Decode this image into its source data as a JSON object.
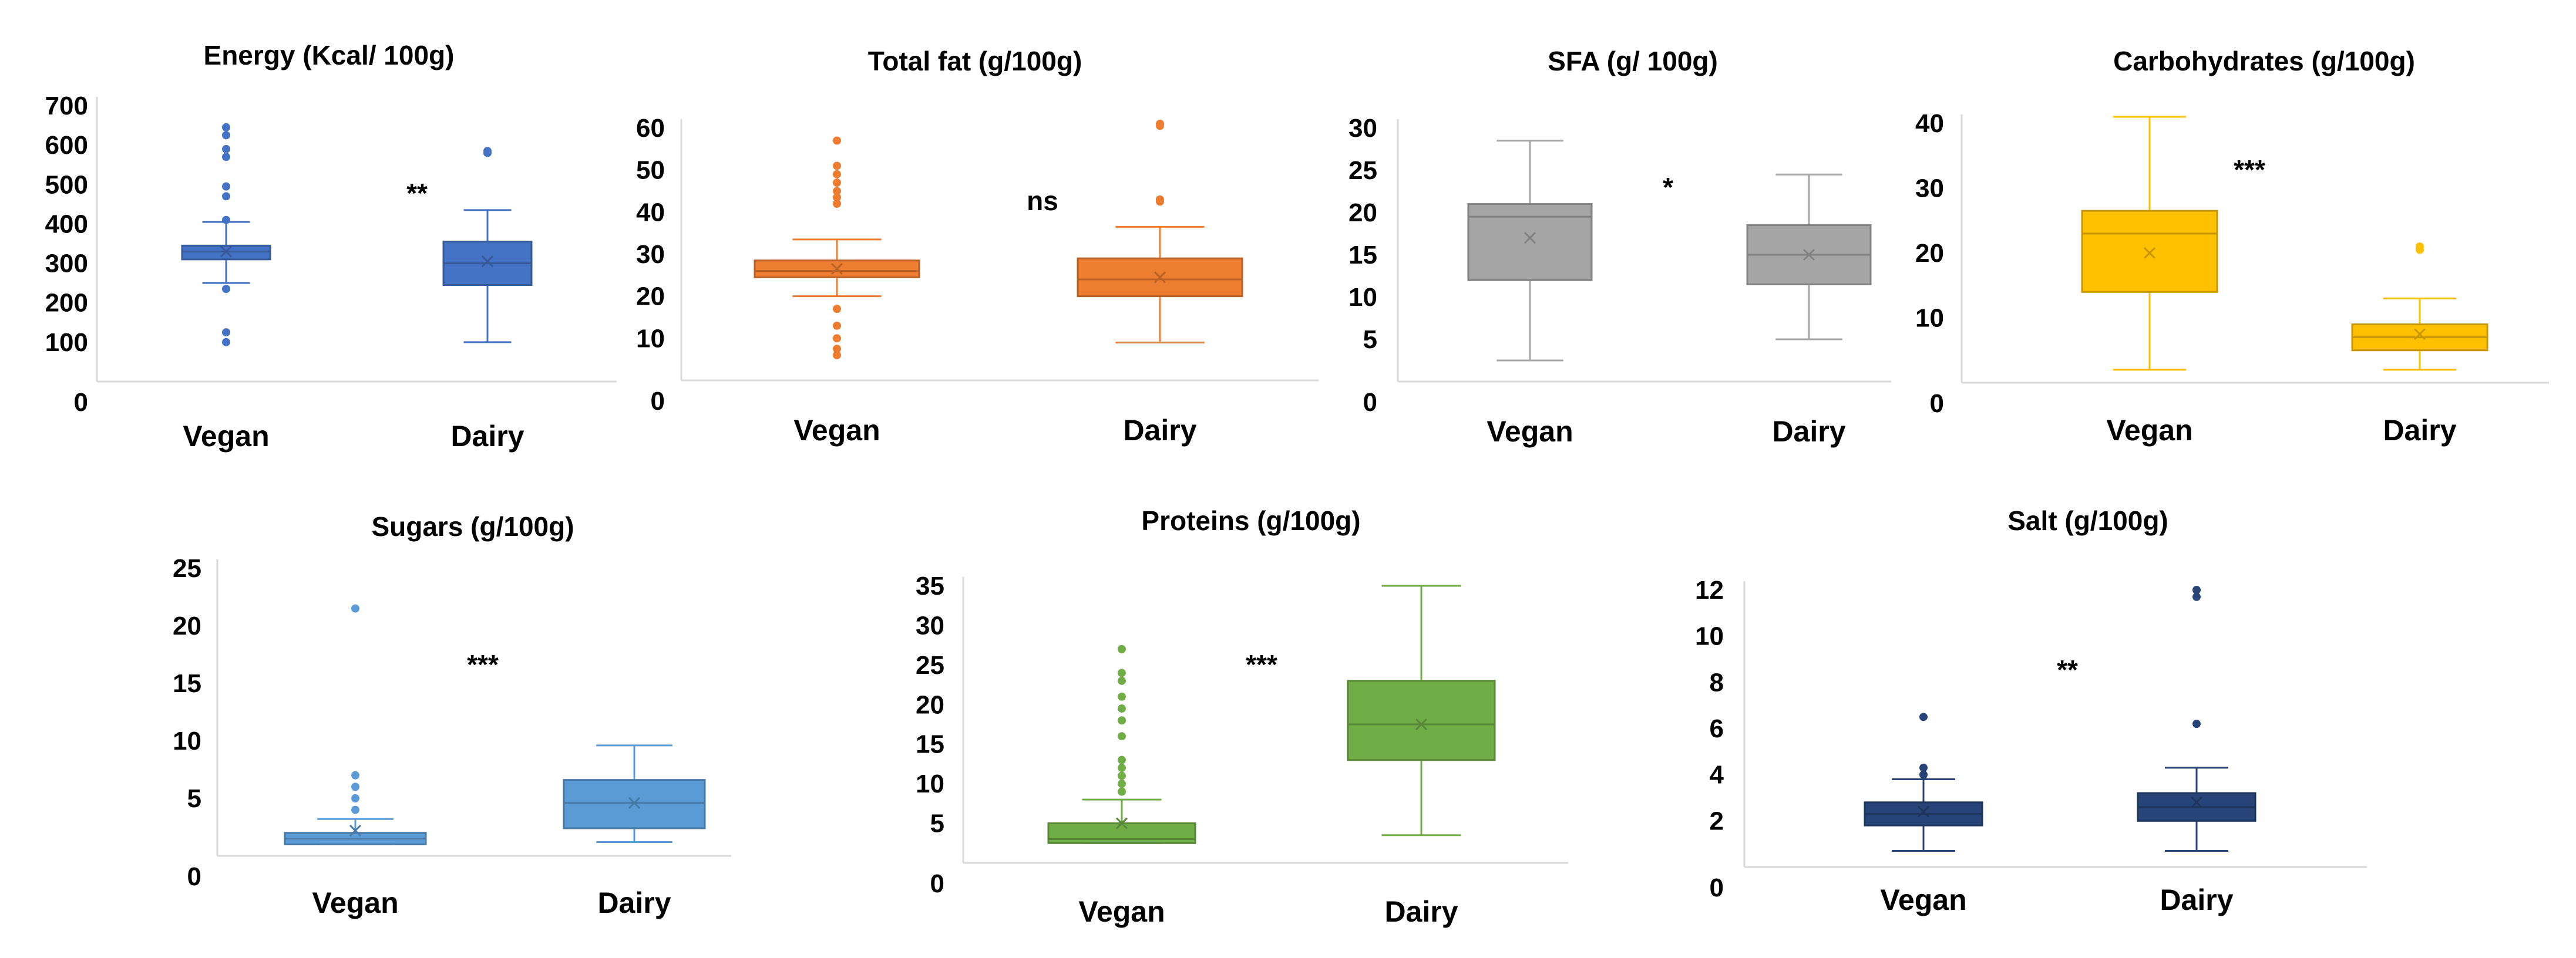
{
  "chart_data": [
    {
      "type": "box",
      "title": "Energy (Kcal/ 100g)",
      "categories": [
        "Vegan",
        "Dairy"
      ],
      "ylim": [
        0,
        700
      ],
      "yticks": [
        0,
        100,
        200,
        300,
        400,
        500,
        600,
        700
      ],
      "significance": "**",
      "color": "#4472C4",
      "boxes": [
        {
          "category": "Vegan",
          "min": 250,
          "q1": 310,
          "median": 330,
          "q3": 345,
          "max": 405,
          "mean": 330,
          "outliers": [
            100,
            125,
            235,
            410,
            470,
            495,
            570,
            590,
            625,
            645
          ]
        },
        {
          "category": "Dairy",
          "min": 100,
          "q1": 245,
          "median": 300,
          "q3": 355,
          "max": 435,
          "mean": 305,
          "outliers": [
            580,
            585
          ]
        }
      ]
    },
    {
      "type": "box",
      "title": "Total fat (g/100g)",
      "categories": [
        "Vegan",
        "Dairy"
      ],
      "ylim": [
        0,
        60
      ],
      "yticks": [
        0,
        10,
        20,
        30,
        40,
        50,
        60
      ],
      "significance": "ns",
      "color": "#ED7D31",
      "boxes": [
        {
          "category": "Vegan",
          "min": 20,
          "q1": 24.5,
          "median": 26,
          "q3": 28.5,
          "max": 33.5,
          "mean": 26.5,
          "outliers": [
            6,
            7.5,
            10,
            13,
            17,
            42,
            43.5,
            45,
            47,
            49,
            51,
            57
          ]
        },
        {
          "category": "Dairy",
          "min": 9,
          "q1": 20,
          "median": 24,
          "q3": 29,
          "max": 36.5,
          "mean": 24.5,
          "outliers": [
            42.5,
            43,
            60.5,
            61
          ]
        }
      ]
    },
    {
      "type": "box",
      "title": "SFA (g/ 100g)",
      "categories": [
        "Vegan",
        "Dairy"
      ],
      "ylim": [
        0,
        30
      ],
      "yticks": [
        0,
        5,
        10,
        15,
        20,
        25,
        30
      ],
      "significance": "*",
      "color": "#A5A5A5",
      "boxes": [
        {
          "category": "Vegan",
          "min": 2.5,
          "q1": 12,
          "median": 19.5,
          "q3": 21,
          "max": 28.5,
          "mean": 17,
          "outliers": []
        },
        {
          "category": "Dairy",
          "min": 5,
          "q1": 11.5,
          "median": 15,
          "q3": 18.5,
          "max": 24.5,
          "mean": 15,
          "outliers": []
        }
      ]
    },
    {
      "type": "box",
      "title": "Carbohydrates (g/100g)",
      "categories": [
        "Vegan",
        "Dairy"
      ],
      "ylim": [
        0,
        40
      ],
      "yticks": [
        0,
        10,
        20,
        30,
        40
      ],
      "significance": "***",
      "color": "#FFC000",
      "boxes": [
        {
          "category": "Vegan",
          "min": 2,
          "q1": 14,
          "median": 23,
          "q3": 26.5,
          "max": 41,
          "mean": 20,
          "outliers": []
        },
        {
          "category": "Dairy",
          "min": 2,
          "q1": 5,
          "median": 7,
          "q3": 9,
          "max": 13,
          "mean": 7.5,
          "outliers": [
            20.5,
            21
          ]
        }
      ]
    },
    {
      "type": "box",
      "title": "Sugars (g/100g)",
      "categories": [
        "Vegan",
        "Dairy"
      ],
      "ylim": [
        0,
        25
      ],
      "yticks": [
        0,
        5,
        10,
        15,
        20,
        25
      ],
      "significance": "***",
      "color": "#5B9BD5",
      "boxes": [
        {
          "category": "Vegan",
          "min": 1,
          "q1": 1,
          "median": 1.5,
          "q3": 2,
          "max": 3.2,
          "mean": 2.2,
          "outliers": [
            4,
            5,
            6,
            7,
            21.5
          ]
        },
        {
          "category": "Dairy",
          "min": 1.2,
          "q1": 2.4,
          "median": 4.6,
          "q3": 6.6,
          "max": 9.6,
          "mean": 4.6,
          "outliers": []
        }
      ]
    },
    {
      "type": "box",
      "title": "Proteins (g/100g)",
      "categories": [
        "Vegan",
        "Dairy"
      ],
      "ylim": [
        0,
        35
      ],
      "yticks": [
        0,
        5,
        10,
        15,
        20,
        25,
        30,
        35
      ],
      "significance": "***",
      "color": "#70AD47",
      "boxes": [
        {
          "category": "Vegan",
          "min": 2.5,
          "q1": 2.5,
          "median": 3,
          "q3": 5,
          "max": 8,
          "mean": 5,
          "outliers": [
            9,
            10,
            11,
            12,
            13,
            16,
            18,
            19.5,
            21,
            23,
            24,
            27
          ]
        },
        {
          "category": "Dairy",
          "min": 3.5,
          "q1": 13,
          "median": 17.5,
          "q3": 23,
          "max": 35,
          "mean": 17.5,
          "outliers": []
        }
      ]
    },
    {
      "type": "box",
      "title": "Salt (g/100g)",
      "categories": [
        "Vegan",
        "Dairy"
      ],
      "ylim": [
        0,
        12
      ],
      "yticks": [
        0,
        2,
        4,
        6,
        8,
        10,
        12
      ],
      "significance": "**",
      "color": "#264478",
      "boxes": [
        {
          "category": "Vegan",
          "min": 0.7,
          "q1": 1.8,
          "median": 2.3,
          "q3": 2.8,
          "max": 3.8,
          "mean": 2.4,
          "outliers": [
            4,
            4.3,
            6.5
          ]
        },
        {
          "category": "Dairy",
          "min": 0.7,
          "q1": 2,
          "median": 2.6,
          "q3": 3.2,
          "max": 4.3,
          "mean": 2.8,
          "outliers": [
            6.2,
            11.7,
            12
          ]
        }
      ]
    }
  ]
}
